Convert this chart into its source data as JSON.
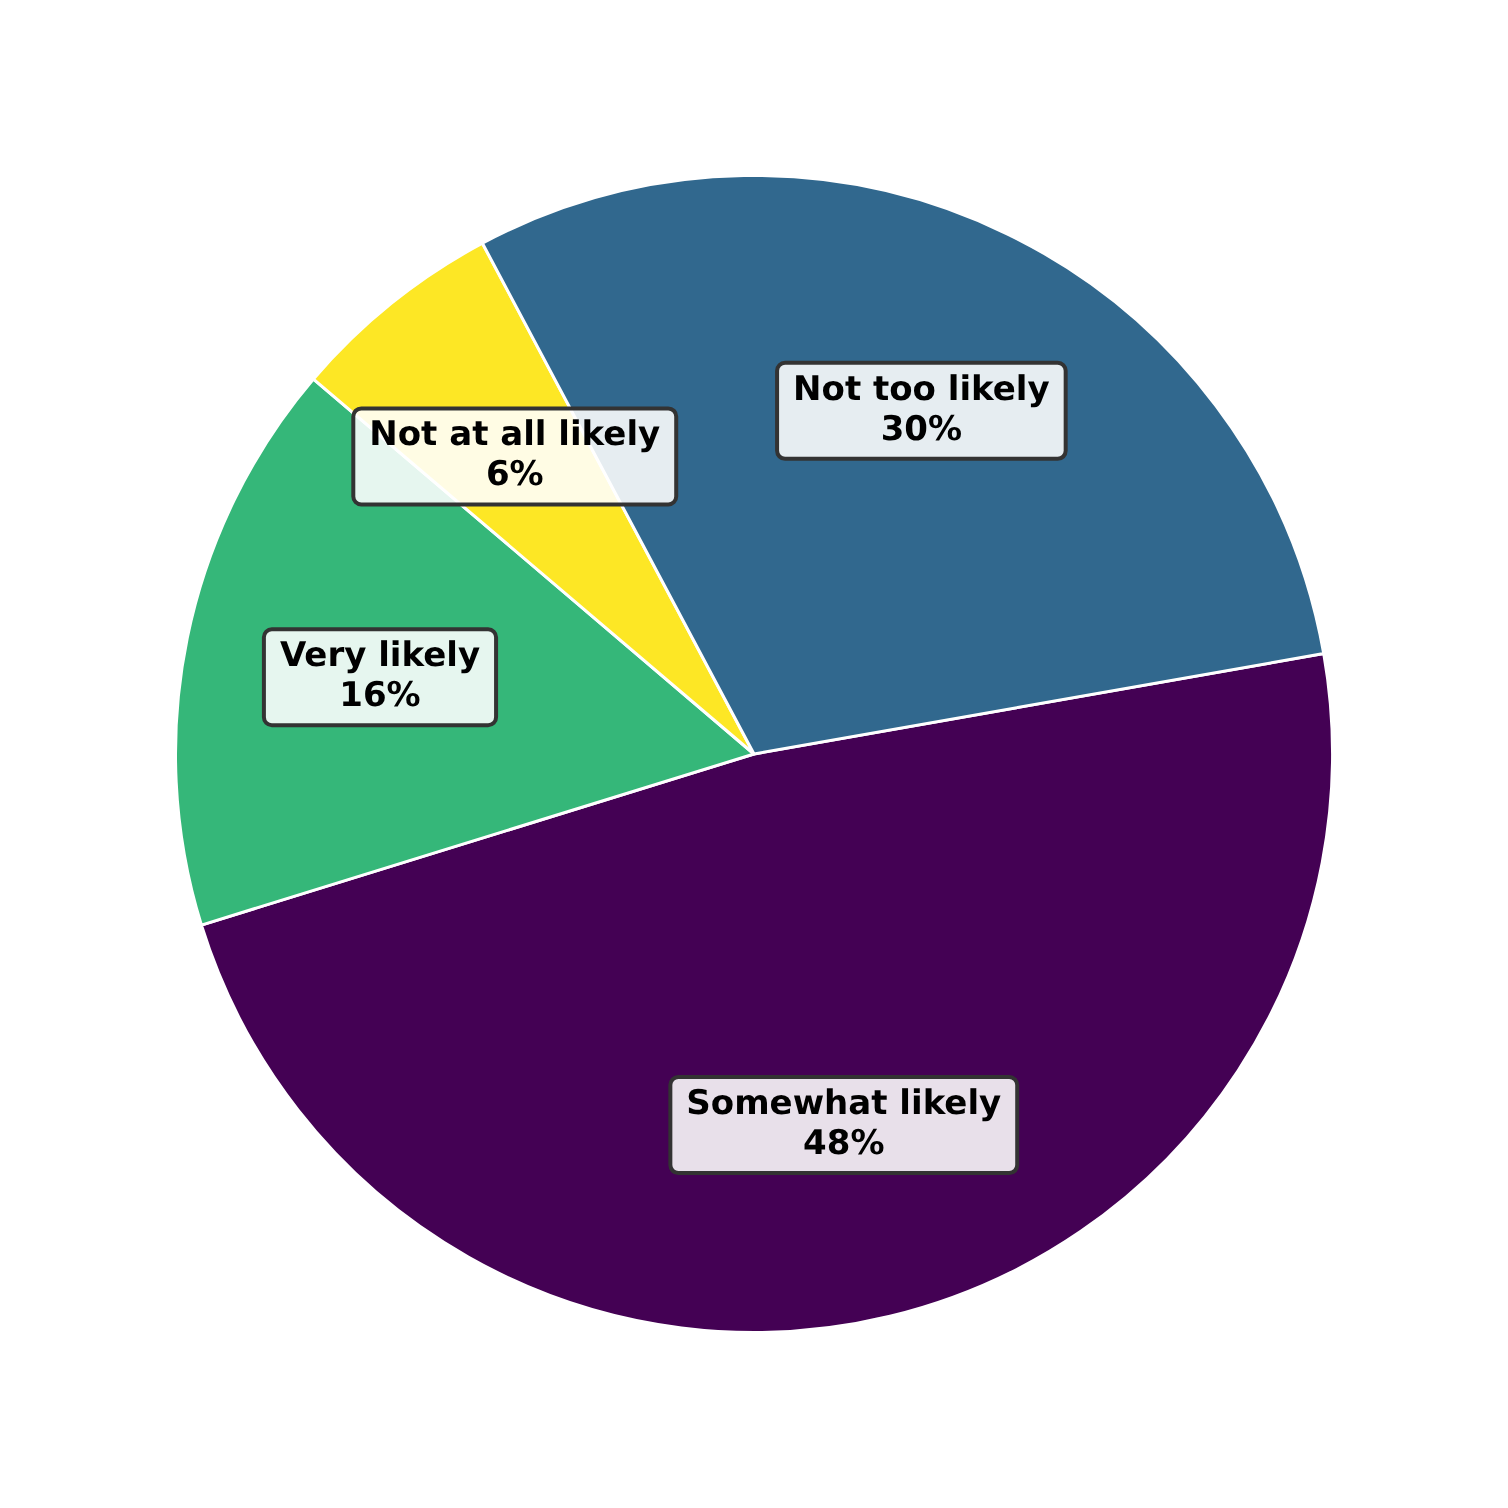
{
  "chart_data": {
    "type": "pie",
    "categories": [
      "Somewhat likely",
      "Very likely",
      "Not at all likely",
      "Not too likely"
    ],
    "values": [
      48,
      16,
      6,
      30
    ],
    "colors": [
      "#440154",
      "#35b779",
      "#fde725",
      "#31688e"
    ],
    "value_labels": [
      "48%",
      "16%",
      "6%",
      "30%"
    ],
    "legend": false
  }
}
